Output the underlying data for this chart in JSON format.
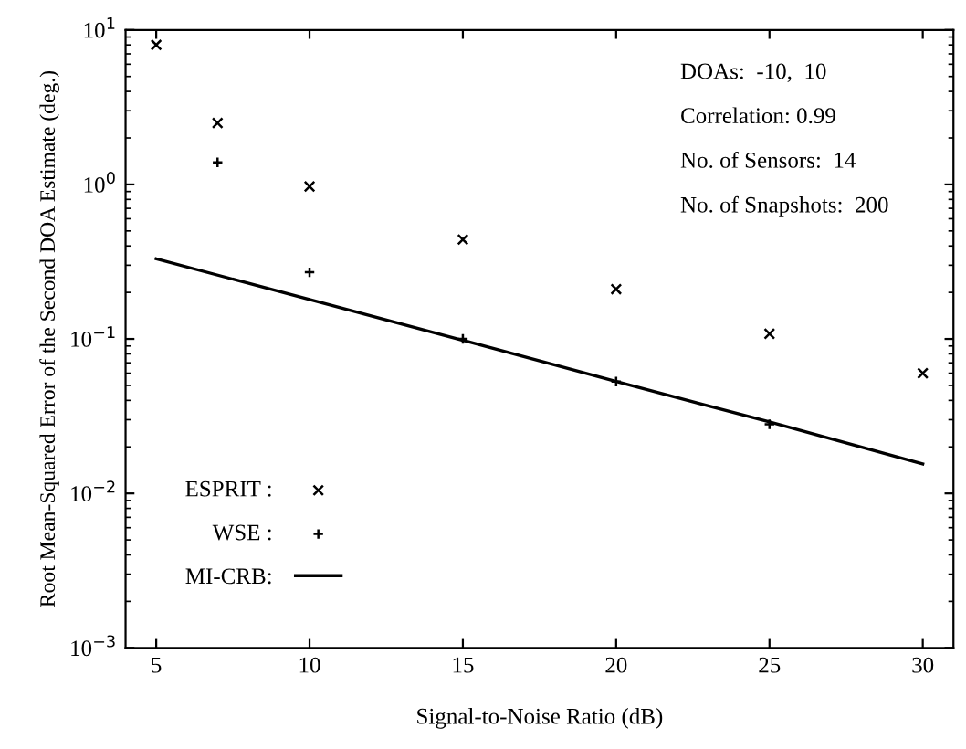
{
  "chart_data": {
    "type": "scatter",
    "xlabel": "Signal-to-Noise Ratio (dB)",
    "ylabel": "Root Mean-Squared Error of the Second DOA Estimate (deg.)",
    "log": "y",
    "xlim": [
      4,
      31
    ],
    "xticks": [
      5,
      10,
      15,
      20,
      25,
      30
    ],
    "ylim": [
      0.001,
      10
    ],
    "yticks": [
      {
        "value": 0.001,
        "label": "10$^{−3}$"
      },
      {
        "value": 0.01,
        "label": "10$^{−2}$"
      },
      {
        "value": 0.1,
        "label": "10$^{−1}$"
      },
      {
        "value": 1,
        "label": "10$^{0}$"
      },
      {
        "value": 10,
        "label": "10$^{1}$"
      }
    ],
    "grid": false,
    "legend": "bottom left",
    "series": [
      {
        "name": "ESPRIT :",
        "marker": "cross",
        "color": "#000000",
        "x": [
          5,
          7,
          10,
          15,
          20,
          25,
          30
        ],
        "values": [
          8,
          2.5,
          0.97,
          0.44,
          0.21,
          0.108,
          0.06
        ]
      },
      {
        "name": "WSE :",
        "marker": "plus",
        "color": "#000000",
        "x": [
          7,
          10,
          15,
          20,
          25
        ],
        "values": [
          1.39,
          0.27,
          0.1,
          0.053,
          0.028
        ]
      },
      {
        "name": "MI-CRB:",
        "type": "line",
        "marker": "none",
        "line_style": "solid",
        "color": "#000000",
        "x": [
          5,
          10,
          15,
          20,
          25,
          30
        ],
        "values": [
          0.33,
          0.18,
          0.098,
          0.053,
          0.029,
          0.0155
        ]
      }
    ],
    "annotations": [
      "DOAs:  -10,  10",
      "Correlation: 0.99",
      "No. of Sensors:  14",
      "No. of Snapshots:  200"
    ]
  }
}
